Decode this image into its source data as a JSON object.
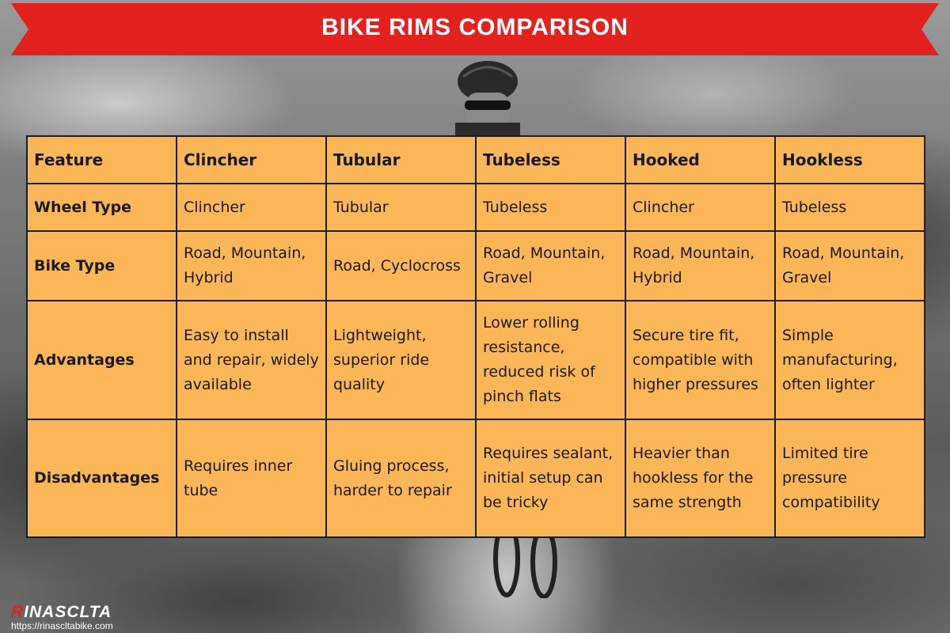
{
  "title": "BIKE RIMS COMPARISON",
  "colors": {
    "banner": "#e3221f",
    "table_fill": "#fbb657",
    "grid": "#1d1d1d"
  },
  "table": {
    "headers": [
      "Feature",
      "Clincher",
      "Tubular",
      "Tubeless",
      "Hooked",
      "Hookless"
    ],
    "rows": [
      {
        "feature": "Wheel Type",
        "cells": [
          "Clincher",
          "Tubular",
          "Tubeless",
          "Clincher",
          "Tubeless"
        ]
      },
      {
        "feature": "Bike Type",
        "cells": [
          "Road, Mountain, Hybrid",
          "Road, Cyclocross",
          "Road, Mountain, Gravel",
          "Road, Mountain, Hybrid",
          "Road, Mountain, Gravel"
        ]
      },
      {
        "feature": "Advantages",
        "cells": [
          "Easy to install and repair, widely available",
          "Lightweight, superior ride quality",
          "Lower rolling resistance, reduced risk of pinch flats",
          "Secure tire fit, compatible with higher pressures",
          "Simple manufacturing, often lighter"
        ]
      },
      {
        "feature": "Disadvantages",
        "cells": [
          "Requires inner tube",
          "Gluing process, harder to repair",
          "Requires sealant, initial setup can be tricky",
          "Heavier than hookless for the same strength",
          "Limited tire pressure compatibility"
        ]
      }
    ]
  },
  "logo": {
    "mark": "R",
    "text": "INASCLTA",
    "url": "https://rinascltabike.com"
  }
}
